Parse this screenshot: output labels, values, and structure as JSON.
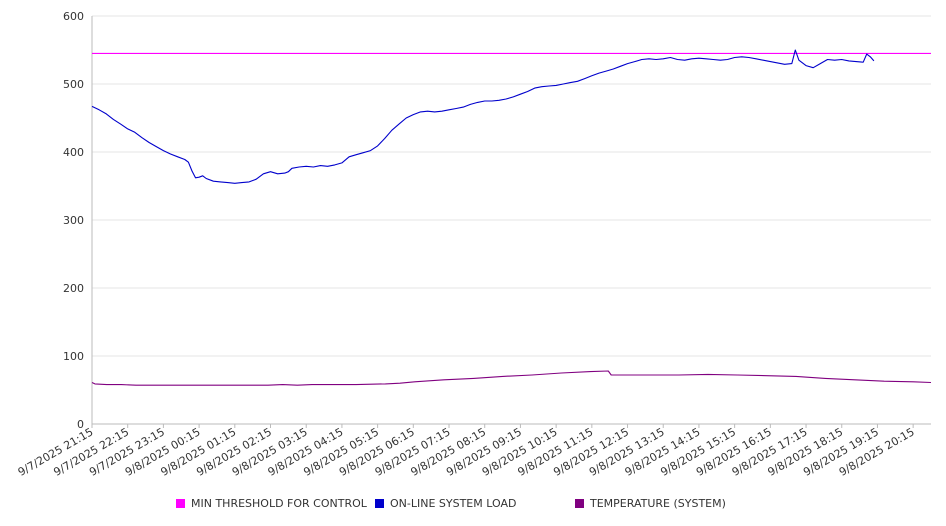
{
  "chart_data": {
    "type": "line",
    "title": "",
    "xlabel": "",
    "ylabel": "",
    "ylim": [
      0,
      600
    ],
    "y_ticks": [
      "0",
      "100",
      "200",
      "300",
      "400",
      "500",
      "600"
    ],
    "x_tick_labels": [
      "9/7/2025 21:15",
      "9/7/2025 22:15",
      "9/7/2025 23:15",
      "9/8/2025 00:15",
      "9/8/2025 01:15",
      "9/8/2025 02:15",
      "9/8/2025 03:15",
      "9/8/2025 04:15",
      "9/8/2025 05:15",
      "9/8/2025 06:15",
      "9/8/2025 07:15",
      "9/8/2025 08:15",
      "9/8/2025 09:15",
      "9/8/2025 10:15",
      "9/8/2025 11:15",
      "9/8/2025 12:15",
      "9/8/2025 13:15",
      "9/8/2025 14:15",
      "9/8/2025 15:15",
      "9/8/2025 16:15",
      "9/8/2025 17:15",
      "9/8/2025 18:15",
      "9/8/2025 19:15",
      "9/8/2025 20:15"
    ],
    "grid": true,
    "legend_position": "bottom",
    "series": [
      {
        "name": "MIN THRESHOLD FOR CONTROL",
        "color": "#ff00ff",
        "points": [
          [
            0,
            545
          ],
          [
            23.5,
            545
          ]
        ]
      },
      {
        "name": "ON-LINE SYSTEM LOAD",
        "color": "#0000cc",
        "points": [
          [
            0,
            467
          ],
          [
            0.2,
            462
          ],
          [
            0.4,
            456
          ],
          [
            0.6,
            448
          ],
          [
            0.8,
            441
          ],
          [
            1,
            434
          ],
          [
            1.2,
            429
          ],
          [
            1.4,
            421
          ],
          [
            1.6,
            414
          ],
          [
            1.8,
            408
          ],
          [
            2,
            402
          ],
          [
            2.2,
            397
          ],
          [
            2.4,
            393
          ],
          [
            2.6,
            389
          ],
          [
            2.7,
            385
          ],
          [
            2.8,
            372
          ],
          [
            2.9,
            362
          ],
          [
            3,
            363
          ],
          [
            3.1,
            365
          ],
          [
            3.2,
            361
          ],
          [
            3.4,
            357
          ],
          [
            3.6,
            356
          ],
          [
            3.8,
            355
          ],
          [
            4,
            354
          ],
          [
            4.2,
            355
          ],
          [
            4.4,
            356
          ],
          [
            4.6,
            360
          ],
          [
            4.8,
            368
          ],
          [
            5,
            371
          ],
          [
            5.2,
            368
          ],
          [
            5.4,
            369
          ],
          [
            5.5,
            371
          ],
          [
            5.6,
            376
          ],
          [
            5.8,
            378
          ],
          [
            6,
            379
          ],
          [
            6.2,
            378
          ],
          [
            6.4,
            380
          ],
          [
            6.6,
            379
          ],
          [
            6.8,
            381
          ],
          [
            7,
            384
          ],
          [
            7.2,
            393
          ],
          [
            7.4,
            396
          ],
          [
            7.6,
            399
          ],
          [
            7.8,
            402
          ],
          [
            8,
            409
          ],
          [
            8.2,
            420
          ],
          [
            8.4,
            432
          ],
          [
            8.6,
            441
          ],
          [
            8.8,
            450
          ],
          [
            9,
            455
          ],
          [
            9.2,
            459
          ],
          [
            9.4,
            460
          ],
          [
            9.6,
            459
          ],
          [
            9.8,
            460
          ],
          [
            10,
            462
          ],
          [
            10.2,
            464
          ],
          [
            10.4,
            466
          ],
          [
            10.6,
            470
          ],
          [
            10.8,
            473
          ],
          [
            11,
            475
          ],
          [
            11.2,
            475
          ],
          [
            11.4,
            476
          ],
          [
            11.6,
            478
          ],
          [
            11.8,
            481
          ],
          [
            12,
            485
          ],
          [
            12.2,
            489
          ],
          [
            12.4,
            494
          ],
          [
            12.6,
            496
          ],
          [
            12.8,
            497
          ],
          [
            13,
            498
          ],
          [
            13.2,
            500
          ],
          [
            13.4,
            502
          ],
          [
            13.6,
            504
          ],
          [
            13.8,
            508
          ],
          [
            14,
            512
          ],
          [
            14.2,
            516
          ],
          [
            14.4,
            519
          ],
          [
            14.6,
            522
          ],
          [
            14.8,
            526
          ],
          [
            15,
            530
          ],
          [
            15.2,
            533
          ],
          [
            15.4,
            536
          ],
          [
            15.6,
            537
          ],
          [
            15.8,
            536
          ],
          [
            16,
            537
          ],
          [
            16.2,
            539
          ],
          [
            16.4,
            536
          ],
          [
            16.6,
            535
          ],
          [
            16.8,
            537
          ],
          [
            17,
            538
          ],
          [
            17.2,
            537
          ],
          [
            17.4,
            536
          ],
          [
            17.6,
            535
          ],
          [
            17.8,
            536
          ],
          [
            18,
            539
          ],
          [
            18.2,
            540
          ],
          [
            18.4,
            539
          ],
          [
            18.6,
            537
          ],
          [
            18.8,
            535
          ],
          [
            19,
            533
          ],
          [
            19.2,
            531
          ],
          [
            19.4,
            529
          ],
          [
            19.6,
            530
          ],
          [
            19.7,
            550
          ],
          [
            19.8,
            535
          ],
          [
            20,
            527
          ],
          [
            20.2,
            524
          ],
          [
            20.4,
            530
          ],
          [
            20.6,
            536
          ],
          [
            20.8,
            535
          ],
          [
            21,
            536
          ],
          [
            21.2,
            534
          ],
          [
            21.4,
            533
          ],
          [
            21.6,
            532
          ],
          [
            21.7,
            544
          ],
          [
            21.8,
            540
          ],
          [
            21.9,
            534
          ]
        ]
      },
      {
        "name": "TEMPERATURE (SYSTEM)",
        "color": "#800080",
        "points": [
          [
            0,
            61
          ],
          [
            0.1,
            59
          ],
          [
            0.5,
            58
          ],
          [
            1,
            58
          ],
          [
            1.5,
            57
          ],
          [
            2,
            57
          ],
          [
            3,
            57
          ],
          [
            4,
            57
          ],
          [
            5,
            57
          ],
          [
            6,
            57
          ],
          [
            6.5,
            58
          ],
          [
            7,
            57
          ],
          [
            7.5,
            58
          ],
          [
            8,
            58
          ],
          [
            9,
            58
          ],
          [
            10,
            59
          ],
          [
            10.5,
            60
          ],
          [
            11,
            62
          ],
          [
            12,
            65
          ],
          [
            13,
            67
          ],
          [
            14,
            70
          ],
          [
            15,
            72
          ],
          [
            16,
            75
          ],
          [
            17,
            77
          ],
          [
            17.6,
            78
          ],
          [
            17.7,
            72
          ],
          [
            18,
            72
          ],
          [
            19,
            72
          ],
          [
            20,
            72
          ],
          [
            21,
            73
          ],
          [
            22,
            72
          ],
          [
            23,
            71
          ],
          [
            24,
            70
          ],
          [
            25,
            67
          ],
          [
            26,
            65
          ],
          [
            27,
            63
          ],
          [
            28,
            62
          ],
          [
            28.6,
            61
          ]
        ]
      }
    ]
  }
}
